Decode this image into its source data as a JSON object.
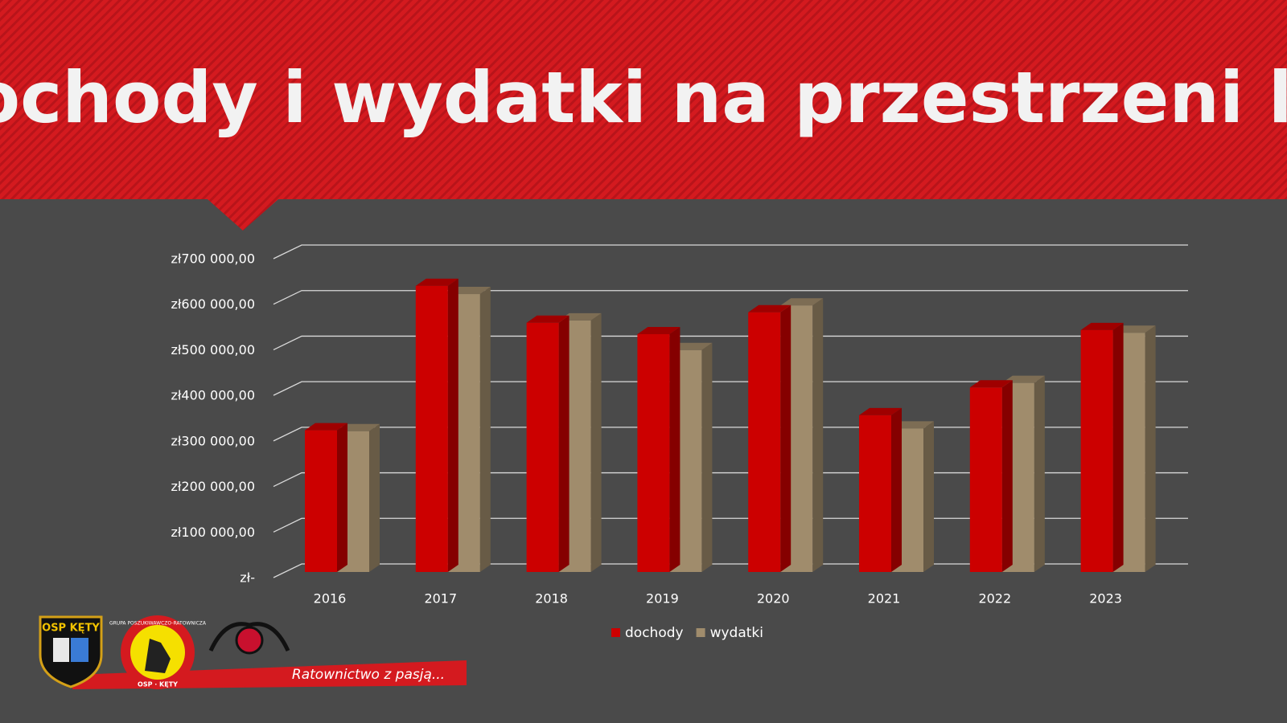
{
  "chart_data": {
    "type": "bar3d",
    "title": "Dochody i wydatki na przestrzeni lat",
    "categories": [
      "2016",
      "2017",
      "2018",
      "2019",
      "2020",
      "2021",
      "2022",
      "2023"
    ],
    "series": [
      {
        "name": "dochody",
        "color": "#cc0000",
        "values": [
          311000,
          628000,
          547000,
          522000,
          570000,
          344000,
          405000,
          531000
        ]
      },
      {
        "name": "wydatki",
        "color": "#a08c6c",
        "values": [
          309000,
          610000,
          552000,
          487000,
          585000,
          315000,
          415000,
          525000
        ]
      }
    ],
    "ylim": [
      0,
      700000
    ],
    "yticks": [
      {
        "value": 0,
        "label": "zł-"
      },
      {
        "value": 100000,
        "label": "zł100 000,00"
      },
      {
        "value": 200000,
        "label": "zł200 000,00"
      },
      {
        "value": 300000,
        "label": "zł300 000,00"
      },
      {
        "value": 400000,
        "label": "zł400 000,00"
      },
      {
        "value": 500000,
        "label": "zł500 000,00"
      },
      {
        "value": 600000,
        "label": "zł600 000,00"
      },
      {
        "value": 700000,
        "label": "zł700 000,00"
      }
    ],
    "grid": true,
    "legend": "bottom"
  },
  "footer": {
    "badge": "OSP KĘTY",
    "circle_top": "GRUPA POSZUKIWAWCZO-RATOWNICZA",
    "circle_bottom": "OSP · KĘTY",
    "slogan": "Ratownictwo z pasją..."
  }
}
